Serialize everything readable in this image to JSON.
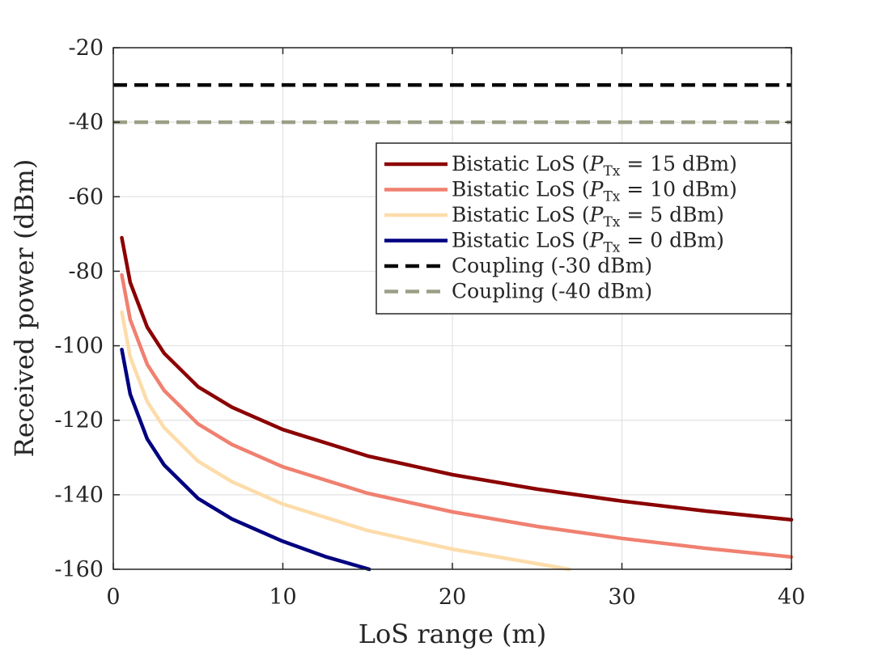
{
  "chart_data": {
    "type": "line",
    "title": "",
    "xlabel": "LoS range (m)",
    "ylabel": "Received power (dBm)",
    "xlim": [
      0,
      40
    ],
    "ylim": [
      -160,
      -20
    ],
    "xticks": [
      0,
      10,
      20,
      30,
      40
    ],
    "yticks": [
      -20,
      -40,
      -60,
      -80,
      -100,
      -120,
      -140,
      -160
    ],
    "xtick_labels": [
      "0",
      "10",
      "20",
      "30",
      "40"
    ],
    "ytick_labels": [
      "-20",
      "-40",
      "-60",
      "-80",
      "-100",
      "-120",
      "-140",
      "-160"
    ],
    "grid": true,
    "legend_position": "top-right",
    "series": [
      {
        "name": "Bistatic LoS (P_Tx = 15 dBm)",
        "legend_prefix": "Bistatic LoS (",
        "legend_var": "P",
        "legend_sub": "Tx",
        "legend_suffix": " = 15 dBm)",
        "color": "#8b0000",
        "dash": "solid",
        "x": [
          0.5,
          1,
          2,
          3,
          5,
          7,
          10,
          15,
          20,
          25,
          30,
          35,
          40
        ],
        "y": [
          -71,
          -83,
          -95,
          -102,
          -111,
          -116.5,
          -122.5,
          -129.6,
          -134.6,
          -138.5,
          -141.7,
          -144.4,
          -146.7
        ]
      },
      {
        "name": "Bistatic LoS (P_Tx = 10 dBm)",
        "legend_prefix": "Bistatic LoS (",
        "legend_var": "P",
        "legend_sub": "Tx",
        "legend_suffix": " = 10 dBm)",
        "color": "#f08070",
        "dash": "solid",
        "x": [
          0.5,
          1,
          2,
          3,
          5,
          7,
          10,
          15,
          20,
          25,
          30,
          35,
          40
        ],
        "y": [
          -81,
          -93,
          -105,
          -112,
          -121,
          -126.5,
          -132.5,
          -139.6,
          -144.6,
          -148.5,
          -151.7,
          -154.4,
          -156.7
        ]
      },
      {
        "name": "Bistatic LoS (P_Tx =  5 dBm)",
        "legend_prefix": "Bistatic LoS (",
        "legend_var": "P",
        "legend_sub": "Tx",
        "legend_suffix": " =  5 dBm)",
        "color": "#fddcaa",
        "dash": "solid",
        "x": [
          0.5,
          1,
          2,
          3,
          5,
          7,
          10,
          15,
          20,
          25,
          26.9
        ],
        "y": [
          -91,
          -103,
          -115,
          -122,
          -131,
          -136.5,
          -142.5,
          -149.6,
          -154.6,
          -158.5,
          -160
        ]
      },
      {
        "name": "Bistatic LoS (P_Tx =  0 dBm)",
        "legend_prefix": "Bistatic LoS (",
        "legend_var": "P",
        "legend_sub": "Tx",
        "legend_suffix": " =  0 dBm)",
        "color": "#000080",
        "dash": "solid",
        "x": [
          0.5,
          1,
          2,
          3,
          5,
          7,
          10,
          12.5,
          15.1
        ],
        "y": [
          -101,
          -113,
          -125,
          -132,
          -141,
          -146.5,
          -152.5,
          -156.6,
          -160
        ]
      },
      {
        "name": "Coupling (-30 dBm)",
        "legend_prefix": "Coupling (-30 dBm)",
        "color": "#000000",
        "dash": "dashed",
        "x": [
          0,
          40
        ],
        "y": [
          -30,
          -30
        ]
      },
      {
        "name": "Coupling (-40 dBm)",
        "legend_prefix": "Coupling (-40 dBm)",
        "color": "#9c9e86",
        "dash": "dashed",
        "x": [
          0,
          40
        ],
        "y": [
          -40,
          -40
        ]
      }
    ]
  }
}
